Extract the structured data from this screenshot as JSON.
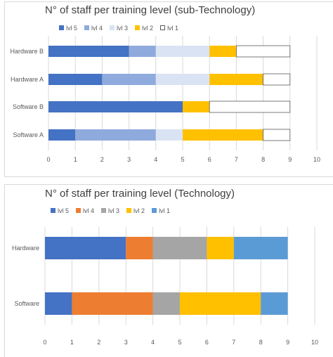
{
  "chart_data": [
    {
      "type": "bar",
      "orientation": "horizontal",
      "stacked": true,
      "title": "N° of staff per training level (sub-Technology)",
      "categories": [
        "Software A",
        "Software B",
        "Hardware A",
        "Hardware B"
      ],
      "series": [
        {
          "name": "lvl 5",
          "color": "#4472C4",
          "values": [
            1,
            5,
            2,
            3
          ]
        },
        {
          "name": "lvl 4",
          "color": "#8FAADC",
          "values": [
            3,
            0,
            2,
            1
          ]
        },
        {
          "name": "lvl 3",
          "color": "#DAE3F3",
          "values": [
            1,
            0,
            2,
            2
          ]
        },
        {
          "name": "lvl 2",
          "color": "#FFC000",
          "values": [
            3,
            1,
            2,
            1
          ]
        },
        {
          "name": "lvl 1",
          "color": "#FFFFFF",
          "values": [
            1,
            3,
            1,
            2
          ]
        }
      ],
      "xlim": [
        0,
        10
      ],
      "xticks": [
        0,
        1,
        2,
        3,
        4,
        5,
        6,
        7,
        8,
        9,
        10
      ],
      "grid": "vertical",
      "legend": "top"
    },
    {
      "type": "bar",
      "orientation": "horizontal",
      "stacked": true,
      "title": "N° of staff per training level (Technology)",
      "categories": [
        "Software",
        "Hardware"
      ],
      "series": [
        {
          "name": "lvl 5",
          "color": "#4472C4",
          "values": [
            1,
            3
          ]
        },
        {
          "name": "lvl 4",
          "color": "#ED7D31",
          "values": [
            3,
            1
          ]
        },
        {
          "name": "lvl 3",
          "color": "#A5A5A5",
          "values": [
            1,
            2
          ]
        },
        {
          "name": "lvl 2",
          "color": "#FFC000",
          "values": [
            3,
            1
          ]
        },
        {
          "name": "lvl 1",
          "color": "#5B9BD5",
          "values": [
            1,
            2
          ]
        }
      ],
      "xlim": [
        0,
        10
      ],
      "xticks": [
        0,
        1,
        2,
        3,
        4,
        5,
        6,
        7,
        8,
        9,
        10
      ],
      "grid": "vertical",
      "legend": "top"
    }
  ]
}
